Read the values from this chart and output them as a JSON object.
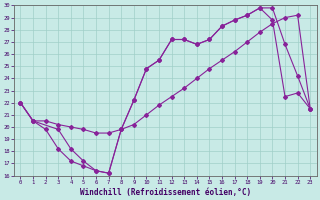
{
  "title": "",
  "xlabel": "Windchill (Refroidissement éolien,°C)",
  "bg_color": "#c8eae6",
  "grid_color": "#a0cfc8",
  "line_color": "#882299",
  "xlim": [
    -0.5,
    23.5
  ],
  "ylim": [
    16,
    30
  ],
  "xticks": [
    0,
    1,
    2,
    3,
    4,
    5,
    6,
    7,
    8,
    9,
    10,
    11,
    12,
    13,
    14,
    15,
    16,
    17,
    18,
    19,
    20,
    21,
    22,
    23
  ],
  "yticks": [
    16,
    17,
    18,
    19,
    20,
    21,
    22,
    23,
    24,
    25,
    26,
    27,
    28,
    29,
    30
  ],
  "line1_x": [
    0,
    1,
    2,
    3,
    4,
    5,
    6,
    7,
    8,
    9,
    10,
    11,
    12,
    13,
    14,
    15,
    16,
    17,
    18,
    19,
    20,
    21,
    22,
    23
  ],
  "line1_y": [
    22,
    20.5,
    19.8,
    18.2,
    17.2,
    16.8,
    16.4,
    16.2,
    19.8,
    22.2,
    24.8,
    25.5,
    27.2,
    27.2,
    26.8,
    27.2,
    28.3,
    28.8,
    29.2,
    29.8,
    29.8,
    26.8,
    24.2,
    21.5
  ],
  "line2_x": [
    0,
    1,
    2,
    3,
    4,
    5,
    6,
    7,
    8,
    9,
    10,
    11,
    12,
    13,
    14,
    15,
    16,
    17,
    18,
    19,
    20,
    21,
    22,
    23
  ],
  "line2_y": [
    22,
    20.5,
    20.5,
    20.2,
    20.0,
    19.8,
    19.5,
    19.5,
    19.8,
    20.2,
    21.0,
    21.8,
    22.5,
    23.2,
    24.0,
    24.8,
    25.5,
    26.2,
    27.0,
    27.8,
    28.5,
    29.0,
    29.2,
    21.5
  ],
  "line3_x": [
    0,
    1,
    3,
    4,
    5,
    6,
    7,
    8,
    9,
    10,
    11,
    12,
    13,
    14,
    15,
    16,
    17,
    18,
    19,
    20,
    21,
    22,
    23
  ],
  "line3_y": [
    22,
    20.5,
    19.8,
    18.2,
    17.2,
    16.4,
    16.2,
    19.8,
    22.2,
    24.8,
    25.5,
    27.2,
    27.2,
    26.8,
    27.2,
    28.3,
    28.8,
    29.2,
    29.8,
    28.8,
    22.5,
    22.8,
    21.5
  ]
}
